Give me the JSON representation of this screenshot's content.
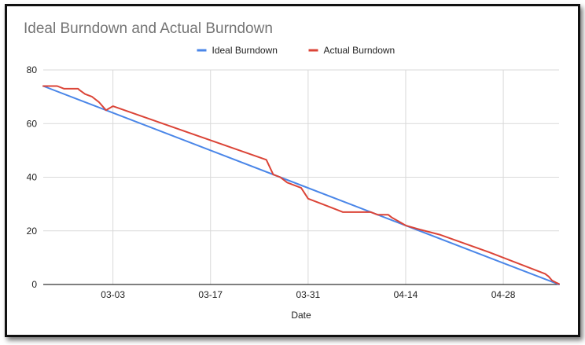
{
  "chart_data": {
    "type": "line",
    "title": "Ideal Burndown and Actual Burndown",
    "xlabel": "Date",
    "ylabel": "",
    "x_tick_labels": [
      "03-03",
      "03-17",
      "03-31",
      "04-14",
      "04-28"
    ],
    "x_tick_days": [
      10,
      24,
      38,
      52,
      66
    ],
    "x_range_days": [
      0,
      74
    ],
    "ylim": [
      0,
      80
    ],
    "y_ticks": [
      0,
      20,
      40,
      60,
      80
    ],
    "legend_position": "top-center",
    "grid": true,
    "series": [
      {
        "name": "Ideal Burndown",
        "color": "#4a86e8",
        "points": [
          [
            0,
            74
          ],
          [
            73,
            1
          ],
          [
            74,
            0
          ]
        ]
      },
      {
        "name": "Actual Burndown",
        "color": "#db4437",
        "points": [
          [
            0,
            74
          ],
          [
            2,
            74
          ],
          [
            3,
            73
          ],
          [
            5,
            73
          ],
          [
            5,
            73
          ],
          [
            5.2,
            72.5
          ],
          [
            6,
            71
          ],
          [
            7,
            70
          ],
          [
            8,
            68
          ],
          [
            9,
            65
          ],
          [
            10,
            66.5
          ],
          [
            32,
            46.5
          ],
          [
            33,
            41
          ],
          [
            34,
            40
          ],
          [
            35,
            38
          ],
          [
            37,
            36
          ],
          [
            38,
            32
          ],
          [
            40,
            30
          ],
          [
            42,
            28
          ],
          [
            43,
            27
          ],
          [
            47,
            27
          ],
          [
            48,
            26
          ],
          [
            49.5,
            26
          ],
          [
            50,
            25
          ],
          [
            51,
            23.5
          ],
          [
            52,
            22
          ],
          [
            54,
            20.5
          ],
          [
            57,
            18.5
          ],
          [
            64,
            12
          ],
          [
            72,
            4
          ],
          [
            72.5,
            3
          ],
          [
            73,
            1.5
          ],
          [
            73.5,
            0.8
          ],
          [
            74,
            0.2
          ]
        ]
      }
    ]
  }
}
